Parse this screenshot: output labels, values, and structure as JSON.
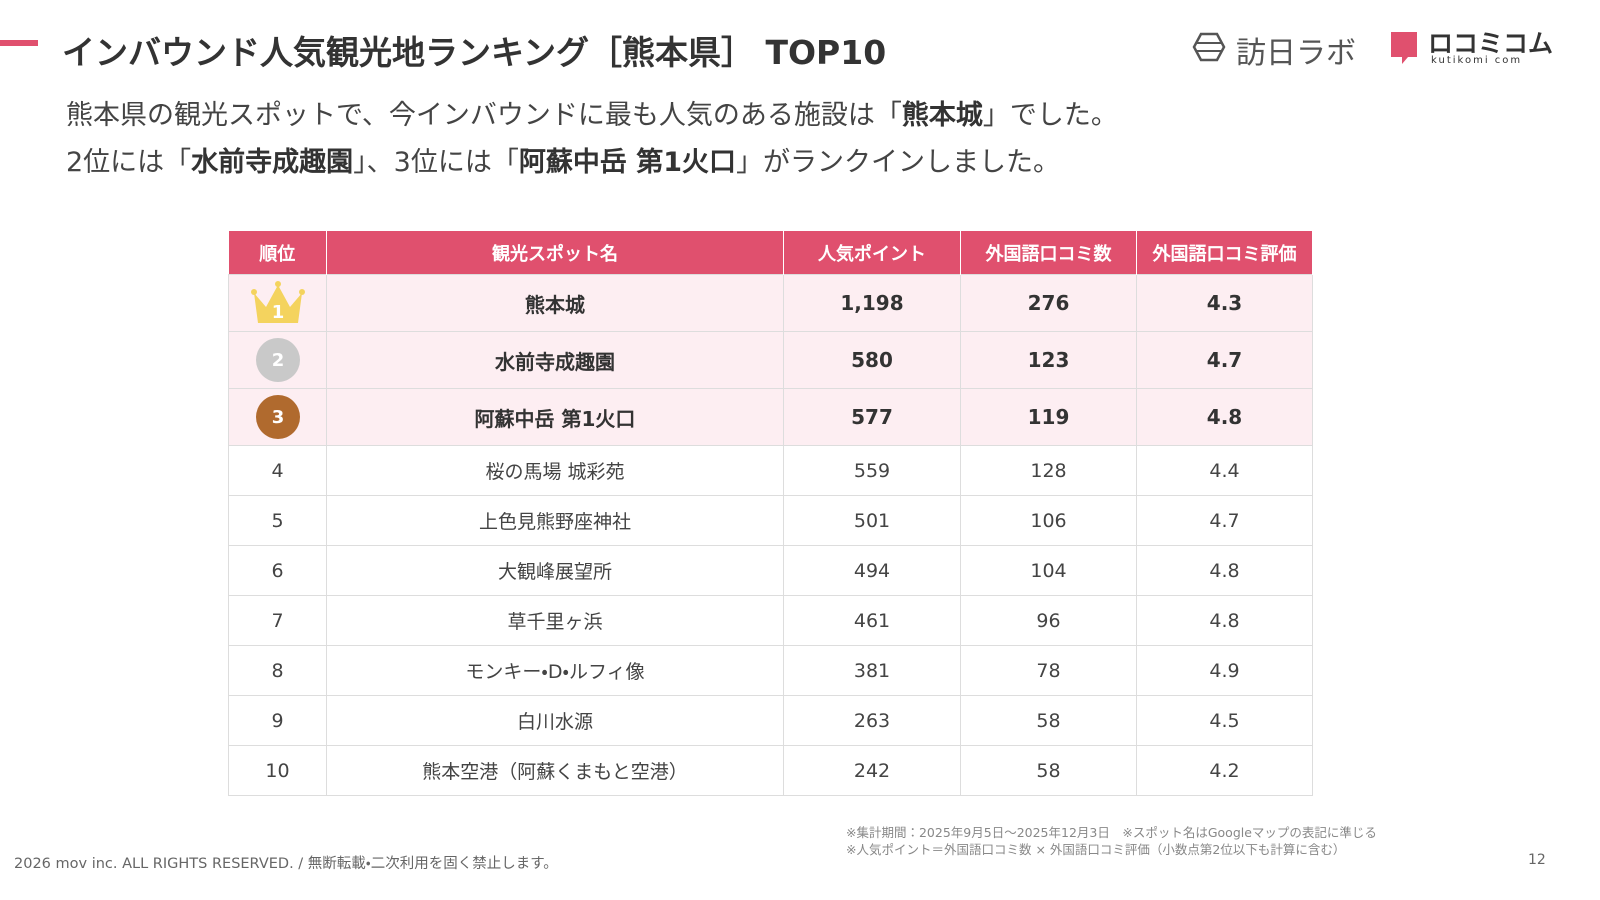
{
  "header": {
    "title": "インバウンド人気観光地ランキング［熊本県］ TOP10",
    "logo_1": "訪日ラボ",
    "logo_2": "ロコミコム",
    "logo_2_sub": "kutikomi com"
  },
  "subtitle": {
    "lines": [
      [
        "熊本県の観光スポットで、今インバウンドに最も人気のある施設は「",
        "熊本城",
        "」でした。"
      ],
      [
        "2位には「",
        "水前寺成趣園",
        "」、3位には「",
        "阿蘇中岳 第1火口",
        "」がランクインしました。"
      ]
    ]
  },
  "table": {
    "headers": [
      "順位",
      "観光スポット名",
      "人気ポイント",
      "外国語口コミ数",
      "外国語口コミ評価"
    ],
    "rows": [
      [
        "1",
        "熊本城",
        "1,198",
        "276",
        "4.3"
      ],
      [
        "2",
        "水前寺成趣園",
        "580",
        "123",
        "4.7"
      ],
      [
        "3",
        "阿蘇中岳 第1火口",
        "577",
        "119",
        "4.8"
      ],
      [
        "4",
        "桜の馬場 城彩苑",
        "559",
        "128",
        "4.4"
      ],
      [
        "5",
        "上色見熊野座神社",
        "501",
        "106",
        "4.7"
      ],
      [
        "6",
        "大観峰展望所",
        "494",
        "104",
        "4.8"
      ],
      [
        "7",
        "草千里ヶ浜",
        "461",
        "96",
        "4.8"
      ],
      [
        "8",
        "モンキー・D・ルフィ像",
        "381",
        "78",
        "4.9"
      ],
      [
        "9",
        "白川水源",
        "263",
        "58",
        "4.5"
      ],
      [
        "10",
        "熊本空港（阿蘇くまもと空港）",
        "242",
        "58",
        "4.2"
      ]
    ]
  },
  "footer": {
    "notes": [
      "※集計期間：2025年9月5日〜2025年12月3日　※スポット名はGoogleマップの表記に準じる",
      "※人気ポイント＝外国語口コミ数 × 外国語口コミ評価（小数点第2位以下も計算に含む）"
    ],
    "copyright": "2026 mov inc. ALL RIGHTS RESERVED. / 無断転載・二次利用を固く禁止します。",
    "page": "12"
  }
}
